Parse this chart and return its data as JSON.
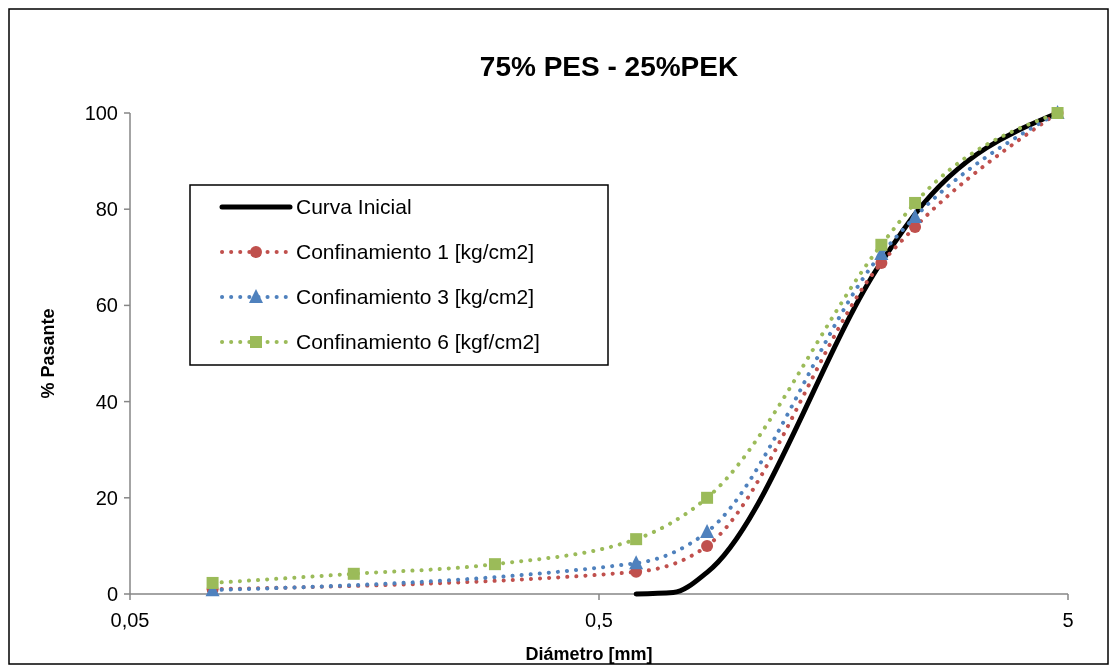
{
  "chart_data": {
    "type": "line",
    "title": "75% PES - 25%PEK",
    "xlabel": "Diámetro [mm]",
    "ylabel": "% Pasante",
    "log": "x",
    "xlim": [
      0.05,
      5
    ],
    "xticks": [
      {
        "value": 0.05,
        "label": "0,05"
      },
      {
        "value": 0.5,
        "label": "0,5"
      },
      5
    ],
    "ylim": [
      0,
      100
    ],
    "yticks": [
      0,
      20,
      40,
      60,
      80,
      100
    ],
    "grid": false,
    "legend": "top left",
    "series": [
      {
        "name": "Curva Inicial",
        "color": "#000000",
        "line_style": "solid",
        "marker": "none",
        "x": [
          0.6,
          0.72,
          0.85,
          2,
          2.36,
          4.75
        ],
        "values": [
          0,
          0.3,
          4.5,
          69,
          79,
          100
        ]
      },
      {
        "name": "Confinamiento 1 [kg/cm2]",
        "color": "#c0504d",
        "line_style": "dotted",
        "marker": "circle",
        "x": [
          0.075,
          0.6,
          0.85,
          2,
          2.36,
          4.75
        ],
        "values": [
          1,
          4.6,
          10,
          68.8,
          76.3,
          100
        ]
      },
      {
        "name": "Confinamiento 3 [kg/cm2]",
        "color": "#4f81bd",
        "line_style": "dotted",
        "marker": "triangle",
        "x": [
          0.075,
          0.6,
          0.85,
          2,
          2.36,
          4.75
        ],
        "values": [
          0.8,
          6.4,
          12.9,
          70.7,
          78.4,
          100
        ]
      },
      {
        "name": "Confinamiento 6 [kgf/cm2]",
        "color": "#9bbb59",
        "line_style": "dotted",
        "marker": "square",
        "x": [
          0.075,
          0.15,
          0.3,
          0.6,
          0.85,
          2,
          2.36,
          4.75
        ],
        "values": [
          2.3,
          4.2,
          6.2,
          11.4,
          20,
          72.6,
          81.3,
          100
        ]
      }
    ]
  }
}
